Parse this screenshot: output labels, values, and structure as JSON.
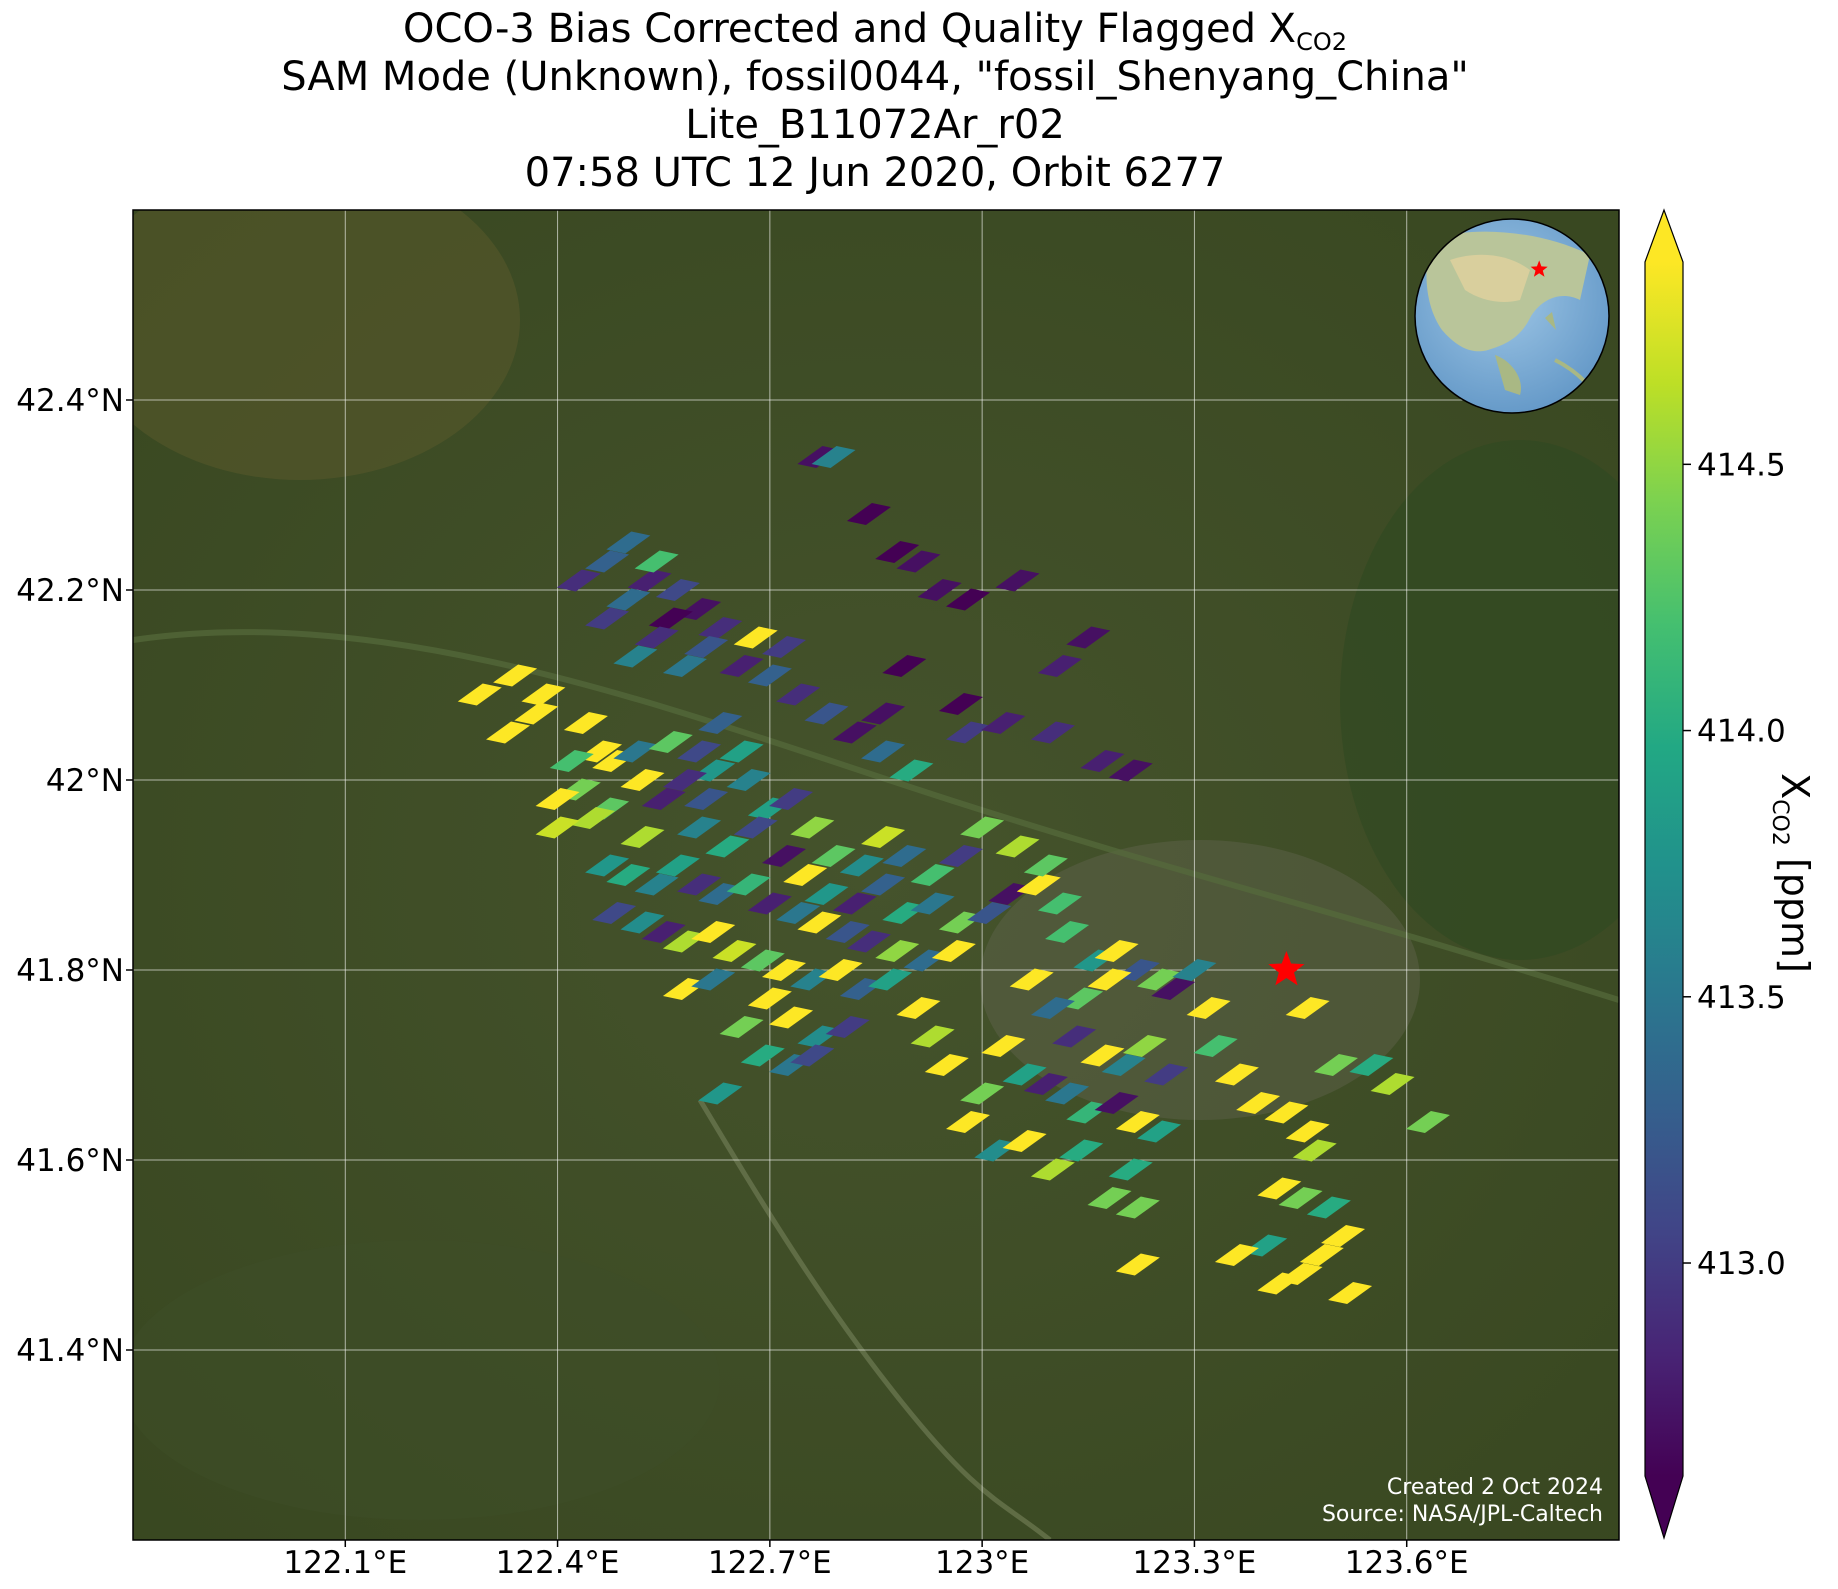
{
  "title": {
    "line1_prefix": "OCO-3 Bias Corrected and Quality Flagged X",
    "line1_sub": "CO2",
    "line2": "SAM Mode (Unknown), fossil0044, \"fossil_Shenyang_China\"",
    "line3": "Lite_B11072Ar_r02",
    "line4": "07:58 UTC 12 Jun 2020, Orbit 6277"
  },
  "credits": {
    "created": "Created 2 Oct 2024",
    "source": "Source: NASA/JPL-Caltech"
  },
  "colorbar": {
    "label_prefix": "X",
    "label_sub": "CO2",
    "label_suffix": " [ppm]",
    "range": [
      412.6,
      414.88
    ],
    "ticks": [
      "413.0",
      "413.5",
      "414.0",
      "414.5"
    ],
    "tick_values": [
      413.0,
      413.5,
      414.0,
      414.5
    ],
    "colormap": "viridis",
    "extend": "both"
  },
  "colors": {
    "star_marker": "#ff0000",
    "grid": "#ffffff",
    "viridis_stops": [
      "#440154",
      "#482475",
      "#414487",
      "#355f8d",
      "#2a788e",
      "#21918c",
      "#22a884",
      "#44bf70",
      "#7ad151",
      "#bddf26",
      "#fde725"
    ]
  },
  "chart_data": {
    "type": "scatter",
    "description": "XCO2 soundings (parallelogram footprints) over satellite imagery",
    "xlim": [
      121.8,
      123.9
    ],
    "ylim": [
      41.2,
      42.6
    ],
    "x_ticks": [
      122.1,
      122.4,
      122.7,
      123.0,
      123.3,
      123.6
    ],
    "x_tick_labels": [
      "122.1°E",
      "122.4°E",
      "122.7°E",
      "123°E",
      "123.3°E",
      "123.6°E"
    ],
    "y_ticks": [
      41.4,
      41.6,
      41.8,
      42.0,
      42.2,
      42.4
    ],
    "y_tick_labels": [
      "41.4°N",
      "41.6°N",
      "41.8°N",
      "42°N",
      "42.2°N",
      "42.4°N"
    ],
    "grid": true,
    "target_marker": {
      "lon": 123.43,
      "lat": 41.8,
      "symbol": "star"
    },
    "inset": "globe-locator-top-right",
    "soundings": [
      [
        122.29,
        42.09,
        414.88
      ],
      [
        122.34,
        42.11,
        414.88
      ],
      [
        122.38,
        42.09,
        414.88
      ],
      [
        122.37,
        42.07,
        414.88
      ],
      [
        122.33,
        42.05,
        414.88
      ],
      [
        122.44,
        42.06,
        414.88
      ],
      [
        122.46,
        42.03,
        414.88
      ],
      [
        122.48,
        42.02,
        414.88
      ],
      [
        122.52,
        42.0,
        414.88
      ],
      [
        122.42,
        42.02,
        414.2
      ],
      [
        122.43,
        41.99,
        414.4
      ],
      [
        122.47,
        41.97,
        414.3
      ],
      [
        122.45,
        41.96,
        414.6
      ],
      [
        122.4,
        41.98,
        414.88
      ],
      [
        122.4,
        41.95,
        414.7
      ],
      [
        122.52,
        41.94,
        414.6
      ],
      [
        122.51,
        42.03,
        413.5
      ],
      [
        122.56,
        42.04,
        414.3
      ],
      [
        122.6,
        42.03,
        413.1
      ],
      [
        122.63,
        42.06,
        413.3
      ],
      [
        122.66,
        42.03,
        413.9
      ],
      [
        122.62,
        42.01,
        413.8
      ],
      [
        122.58,
        42.0,
        412.9
      ],
      [
        122.55,
        41.98,
        412.8
      ],
      [
        122.61,
        41.98,
        413.2
      ],
      [
        122.67,
        42.0,
        413.6
      ],
      [
        122.7,
        41.97,
        413.9
      ],
      [
        122.73,
        41.98,
        413.0
      ],
      [
        122.76,
        41.95,
        414.5
      ],
      [
        122.79,
        41.92,
        414.3
      ],
      [
        122.83,
        41.91,
        413.7
      ],
      [
        122.86,
        41.94,
        414.7
      ],
      [
        122.89,
        41.92,
        413.4
      ],
      [
        122.93,
        41.9,
        414.2
      ],
      [
        122.97,
        41.92,
        413.0
      ],
      [
        122.6,
        41.95,
        413.6
      ],
      [
        122.64,
        41.93,
        414.0
      ],
      [
        122.68,
        41.95,
        413.1
      ],
      [
        122.72,
        41.92,
        412.7
      ],
      [
        122.75,
        41.9,
        414.88
      ],
      [
        122.78,
        41.88,
        413.8
      ],
      [
        122.82,
        41.87,
        412.8
      ],
      [
        122.86,
        41.89,
        413.3
      ],
      [
        122.89,
        41.86,
        414.0
      ],
      [
        122.93,
        41.87,
        413.5
      ],
      [
        122.97,
        41.85,
        414.4
      ],
      [
        123.01,
        41.86,
        413.2
      ],
      [
        123.04,
        41.88,
        412.7
      ],
      [
        123.08,
        41.89,
        414.88
      ],
      [
        123.11,
        41.87,
        414.2
      ],
      [
        122.47,
        41.91,
        413.8
      ],
      [
        122.5,
        41.9,
        414.0
      ],
      [
        122.54,
        41.89,
        413.6
      ],
      [
        122.57,
        41.91,
        413.9
      ],
      [
        122.6,
        41.89,
        412.9
      ],
      [
        122.63,
        41.88,
        413.4
      ],
      [
        122.67,
        41.89,
        414.1
      ],
      [
        122.7,
        41.87,
        412.8
      ],
      [
        122.74,
        41.86,
        413.5
      ],
      [
        122.77,
        41.85,
        414.88
      ],
      [
        122.81,
        41.84,
        413.2
      ],
      [
        122.84,
        41.83,
        412.9
      ],
      [
        122.88,
        41.82,
        414.5
      ],
      [
        122.92,
        41.81,
        413.4
      ],
      [
        122.96,
        41.82,
        414.88
      ],
      [
        122.48,
        41.86,
        413.1
      ],
      [
        122.52,
        41.85,
        413.7
      ],
      [
        122.55,
        41.84,
        412.8
      ],
      [
        122.58,
        41.83,
        414.6
      ],
      [
        122.62,
        41.84,
        414.88
      ],
      [
        122.65,
        41.82,
        414.7
      ],
      [
        122.69,
        41.81,
        414.3
      ],
      [
        122.72,
        41.8,
        414.88
      ],
      [
        122.76,
        41.79,
        413.6
      ],
      [
        122.8,
        41.8,
        414.88
      ],
      [
        122.83,
        41.78,
        413.3
      ],
      [
        122.87,
        41.79,
        413.9
      ],
      [
        122.58,
        41.78,
        414.88
      ],
      [
        122.62,
        41.79,
        413.5
      ],
      [
        122.7,
        41.77,
        414.88
      ],
      [
        122.73,
        41.75,
        414.88
      ],
      [
        122.77,
        41.73,
        413.7
      ],
      [
        122.81,
        41.74,
        413.0
      ],
      [
        122.66,
        41.74,
        414.4
      ],
      [
        122.69,
        41.71,
        414.0
      ],
      [
        122.73,
        41.7,
        413.5
      ],
      [
        122.76,
        41.71,
        413.1
      ],
      [
        122.63,
        41.67,
        413.8
      ],
      [
        122.91,
        41.76,
        414.88
      ],
      [
        122.93,
        41.73,
        414.6
      ],
      [
        122.95,
        41.7,
        414.88
      ],
      [
        122.57,
        42.2,
        413.1
      ],
      [
        122.53,
        42.21,
        412.8
      ],
      [
        122.6,
        42.18,
        412.7
      ],
      [
        122.56,
        42.17,
        412.6
      ],
      [
        122.63,
        42.16,
        412.9
      ],
      [
        122.5,
        42.19,
        413.4
      ],
      [
        122.54,
        42.15,
        412.9
      ],
      [
        122.61,
        42.14,
        413.2
      ],
      [
        122.66,
        42.12,
        412.8
      ],
      [
        122.7,
        42.11,
        413.3
      ],
      [
        122.74,
        42.09,
        412.9
      ],
      [
        122.78,
        42.07,
        413.2
      ],
      [
        122.82,
        42.05,
        412.7
      ],
      [
        122.86,
        42.03,
        413.4
      ],
      [
        122.9,
        42.01,
        414.0
      ],
      [
        122.47,
        42.17,
        413.0
      ],
      [
        122.51,
        42.13,
        413.6
      ],
      [
        122.58,
        42.12,
        413.5
      ],
      [
        122.68,
        42.15,
        414.88
      ],
      [
        122.72,
        42.14,
        413.0
      ],
      [
        122.5,
        42.25,
        413.4
      ],
      [
        122.54,
        42.23,
        414.2
      ],
      [
        122.47,
        42.23,
        413.3
      ],
      [
        122.43,
        42.21,
        412.9
      ],
      [
        122.77,
        42.34,
        412.7
      ],
      [
        122.79,
        42.34,
        413.6
      ],
      [
        122.84,
        42.28,
        412.6
      ],
      [
        122.88,
        42.24,
        412.6
      ],
      [
        122.91,
        42.23,
        412.7
      ],
      [
        122.94,
        42.2,
        412.7
      ],
      [
        122.98,
        42.19,
        412.6
      ],
      [
        123.05,
        42.21,
        412.7
      ],
      [
        123.11,
        42.12,
        412.8
      ],
      [
        123.15,
        42.15,
        412.7
      ],
      [
        122.89,
        42.12,
        412.6
      ],
      [
        122.86,
        42.07,
        412.7
      ],
      [
        122.97,
        42.08,
        412.6
      ],
      [
        122.98,
        42.05,
        413.0
      ],
      [
        123.03,
        42.06,
        412.8
      ],
      [
        123.1,
        42.05,
        412.9
      ],
      [
        123.17,
        42.02,
        412.8
      ],
      [
        123.21,
        42.01,
        412.7
      ],
      [
        123.0,
        41.95,
        414.4
      ],
      [
        123.05,
        41.93,
        414.6
      ],
      [
        123.09,
        41.91,
        414.3
      ],
      [
        123.12,
        41.84,
        414.2
      ],
      [
        123.16,
        41.81,
        413.8
      ],
      [
        123.19,
        41.82,
        414.88
      ],
      [
        123.22,
        41.8,
        413.2
      ],
      [
        123.25,
        41.79,
        414.4
      ],
      [
        123.27,
        41.78,
        412.7
      ],
      [
        123.18,
        41.79,
        414.88
      ],
      [
        123.14,
        41.77,
        414.3
      ],
      [
        123.07,
        41.79,
        414.88
      ],
      [
        123.1,
        41.76,
        413.4
      ],
      [
        123.13,
        41.73,
        412.9
      ],
      [
        123.17,
        41.71,
        414.88
      ],
      [
        123.2,
        41.7,
        413.6
      ],
      [
        123.23,
        41.72,
        414.5
      ],
      [
        123.26,
        41.69,
        413.0
      ],
      [
        123.03,
        41.72,
        414.88
      ],
      [
        123.06,
        41.69,
        413.9
      ],
      [
        123.09,
        41.68,
        412.8
      ],
      [
        123.12,
        41.67,
        413.5
      ],
      [
        123.15,
        41.65,
        414.1
      ],
      [
        123.19,
        41.66,
        412.7
      ],
      [
        123.22,
        41.64,
        414.88
      ],
      [
        123.25,
        41.63,
        413.9
      ],
      [
        123.0,
        41.67,
        414.4
      ],
      [
        122.98,
        41.64,
        414.88
      ],
      [
        123.02,
        41.61,
        413.7
      ],
      [
        123.06,
        41.62,
        414.88
      ],
      [
        123.1,
        41.59,
        414.6
      ],
      [
        123.14,
        41.61,
        414.0
      ],
      [
        123.3,
        41.8,
        413.6
      ],
      [
        123.32,
        41.76,
        414.88
      ],
      [
        123.33,
        41.72,
        414.2
      ],
      [
        123.36,
        41.69,
        414.88
      ],
      [
        123.39,
        41.66,
        414.88
      ],
      [
        123.43,
        41.65,
        414.88
      ],
      [
        123.46,
        41.63,
        414.88
      ],
      [
        123.47,
        41.61,
        414.6
      ],
      [
        123.42,
        41.57,
        414.88
      ],
      [
        123.45,
        41.56,
        414.4
      ],
      [
        123.49,
        41.55,
        414.0
      ],
      [
        123.51,
        41.52,
        414.88
      ],
      [
        123.48,
        41.5,
        414.88
      ],
      [
        123.45,
        41.48,
        414.88
      ],
      [
        123.42,
        41.47,
        414.88
      ],
      [
        123.4,
        41.51,
        413.9
      ],
      [
        123.36,
        41.5,
        414.88
      ],
      [
        123.52,
        41.46,
        414.88
      ],
      [
        123.22,
        41.49,
        414.88
      ],
      [
        123.5,
        41.7,
        414.4
      ],
      [
        123.55,
        41.7,
        414.0
      ],
      [
        123.58,
        41.68,
        414.6
      ],
      [
        123.63,
        41.64,
        414.4
      ],
      [
        123.46,
        41.76,
        414.88
      ],
      [
        123.18,
        41.56,
        414.4
      ],
      [
        123.22,
        41.55,
        414.4
      ],
      [
        123.21,
        41.59,
        414.0
      ]
    ]
  }
}
